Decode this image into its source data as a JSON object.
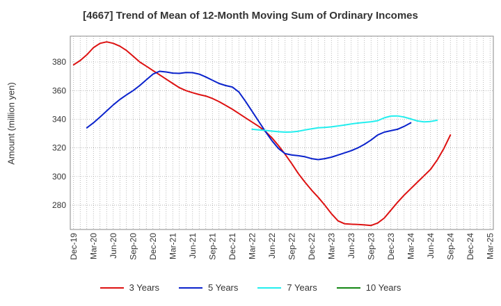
{
  "chart_data": {
    "type": "line",
    "title": "[4667]  Trend of Mean of 12-Month Moving Sum of Ordinary Incomes",
    "xlabel": "",
    "ylabel": "Amount (million yen)",
    "ylim": [
      263,
      398
    ],
    "yticks": [
      280,
      300,
      320,
      340,
      360,
      380
    ],
    "x_start": "Dec-19",
    "x_count": 64,
    "tick_labels": [
      "Dec-19",
      "Mar-20",
      "Jun-20",
      "Sep-20",
      "Dec-20",
      "Mar-21",
      "Jun-21",
      "Sep-21",
      "Dec-21",
      "Mar-22",
      "Jun-22",
      "Sep-22",
      "Dec-22",
      "Mar-23",
      "Jun-23",
      "Sep-23",
      "Dec-23",
      "Mar-24",
      "Jun-24",
      "Sep-24",
      "Dec-24",
      "Mar-25"
    ],
    "series": [
      {
        "name": "3 Years",
        "color": "#dd1111",
        "start_index": 0,
        "values": [
          378,
          381,
          385,
          390,
          393,
          394,
          393,
          391,
          388,
          384,
          380,
          377,
          374,
          371,
          368,
          365,
          362,
          360,
          358.5,
          357.2,
          356.2,
          354.5,
          352.3,
          349.7,
          347,
          344,
          341,
          338,
          335,
          331.5,
          327,
          321.5,
          315.5,
          309,
          302,
          296,
          290.5,
          285.5,
          280,
          274,
          269,
          267,
          266.7,
          266.5,
          266.2,
          265.8,
          267.5,
          271,
          276.5,
          282,
          287,
          291.5,
          296,
          300.5,
          305,
          311.5,
          319.5,
          329
        ]
      },
      {
        "name": "5 Years",
        "color": "#0a22cc",
        "start_index": 2,
        "values": [
          334,
          337.5,
          341.5,
          345.8,
          350,
          353.8,
          357,
          360,
          363.5,
          367.5,
          371.5,
          373.5,
          373,
          372.2,
          372,
          372.6,
          372.5,
          371.5,
          369.5,
          367.2,
          365,
          363.5,
          362.5,
          359,
          352.5,
          345.5,
          338.5,
          331.5,
          325,
          319.5,
          316,
          315,
          314.5,
          313.8,
          312.5,
          311.8,
          312.5,
          313.5,
          315,
          316.5,
          318,
          320,
          322.5,
          325.5,
          329,
          331,
          332,
          333,
          335,
          337.5
        ]
      },
      {
        "name": "7 Years",
        "color": "#22eeee",
        "start_index": 27,
        "values": [
          333,
          332.6,
          332.2,
          331.7,
          331.3,
          331,
          331.1,
          331.6,
          332.5,
          333.3,
          334,
          334.3,
          334.7,
          335.3,
          336,
          336.7,
          337.3,
          337.8,
          338.2,
          339,
          341,
          342.2,
          342.3,
          341.5,
          340.2,
          338.8,
          338.1,
          338.4,
          339.3
        ]
      },
      {
        "name": "10 Years",
        "color": "#138613",
        "start_index": 0,
        "values": []
      }
    ]
  }
}
